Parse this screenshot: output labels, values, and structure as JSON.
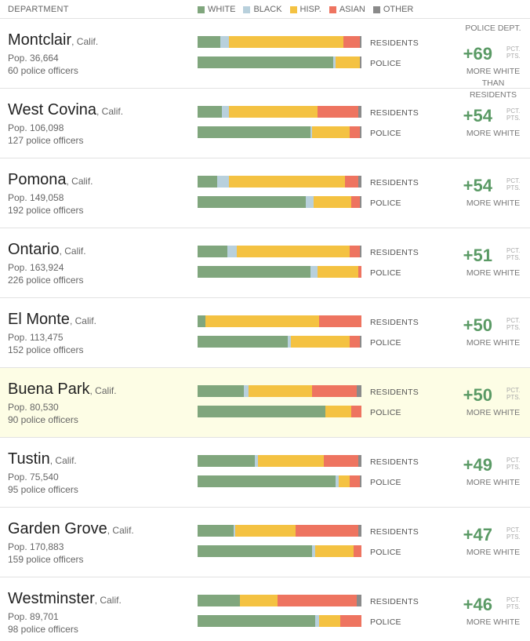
{
  "header": {
    "department": "DEPARTMENT",
    "legend": [
      {
        "name": "WHITE",
        "color": "#80a67d"
      },
      {
        "name": "BLACK",
        "color": "#b8d0dc"
      },
      {
        "name": "HISP.",
        "color": "#f4c242"
      },
      {
        "name": "ASIAN",
        "color": "#ee7460"
      },
      {
        "name": "OTHER",
        "color": "#8a8a8a"
      }
    ]
  },
  "labels": {
    "residents": "RESIDENTS",
    "police": "POLICE",
    "police_dept": "POLICE DEPT.",
    "pct": "PCT.",
    "pts": "PTS.",
    "more_white": "MORE WHITE",
    "than_residents": "THAN RESIDENTS"
  },
  "chart_data": {
    "type": "bar",
    "stacked": true,
    "categories_order": [
      "White",
      "Black",
      "Hispanic",
      "Asian",
      "Other"
    ],
    "rows": [
      {
        "city": "Montclair",
        "state": ", Calif.",
        "pop": "Pop. 36,664",
        "officers": "60 police officers",
        "diff": "+69",
        "residents": [
          14,
          5,
          70,
          10,
          1
        ],
        "police": [
          83,
          1,
          15,
          0,
          1
        ]
      },
      {
        "city": "West Covina",
        "state": ", Calif.",
        "pop": "Pop. 106,098",
        "officers": "127 police officers",
        "diff": "+54",
        "residents": [
          15,
          4,
          54,
          25,
          2
        ],
        "police": [
          69,
          1,
          23,
          6,
          1
        ]
      },
      {
        "city": "Pomona",
        "state": ", Calif.",
        "pop": "Pop. 149,058",
        "officers": "192 police officers",
        "diff": "+54",
        "residents": [
          12,
          7,
          71,
          8,
          2
        ],
        "police": [
          66,
          5,
          23,
          5,
          1
        ]
      },
      {
        "city": "Ontario",
        "state": ", Calif.",
        "pop": "Pop. 163,924",
        "officers": "226 police officers",
        "diff": "+51",
        "residents": [
          18,
          6,
          69,
          6,
          1
        ],
        "police": [
          69,
          4,
          25,
          2,
          0
        ]
      },
      {
        "city": "El Monte",
        "state": ", Calif.",
        "pop": "Pop. 113,475",
        "officers": "152 police officers",
        "diff": "+50",
        "residents": [
          5,
          0,
          69,
          26,
          0
        ],
        "police": [
          55,
          2,
          36,
          6,
          1
        ]
      },
      {
        "city": "Buena Park",
        "state": ", Calif.",
        "pop": "Pop. 80,530",
        "officers": "90 police officers",
        "diff": "+50",
        "residents": [
          28,
          3,
          39,
          27,
          3
        ],
        "police": [
          78,
          0,
          16,
          6,
          0
        ]
      },
      {
        "city": "Tustin",
        "state": ", Calif.",
        "pop": "Pop. 75,540",
        "officers": "95 police officers",
        "diff": "+49",
        "residents": [
          35,
          2,
          40,
          21,
          2
        ],
        "police": [
          84,
          2,
          7,
          6,
          1
        ]
      },
      {
        "city": "Garden Grove",
        "state": ", Calif.",
        "pop": "Pop. 170,883",
        "officers": "159 police officers",
        "diff": "+47",
        "residents": [
          22,
          1,
          37,
          38,
          2
        ],
        "police": [
          70,
          2,
          23,
          5,
          0
        ]
      },
      {
        "city": "Westminster",
        "state": ", Calif.",
        "pop": "Pop. 89,701",
        "officers": "98 police officers",
        "diff": "+46",
        "residents": [
          26,
          0,
          23,
          48,
          3
        ],
        "police": [
          72,
          2,
          13,
          13,
          0
        ]
      }
    ]
  }
}
